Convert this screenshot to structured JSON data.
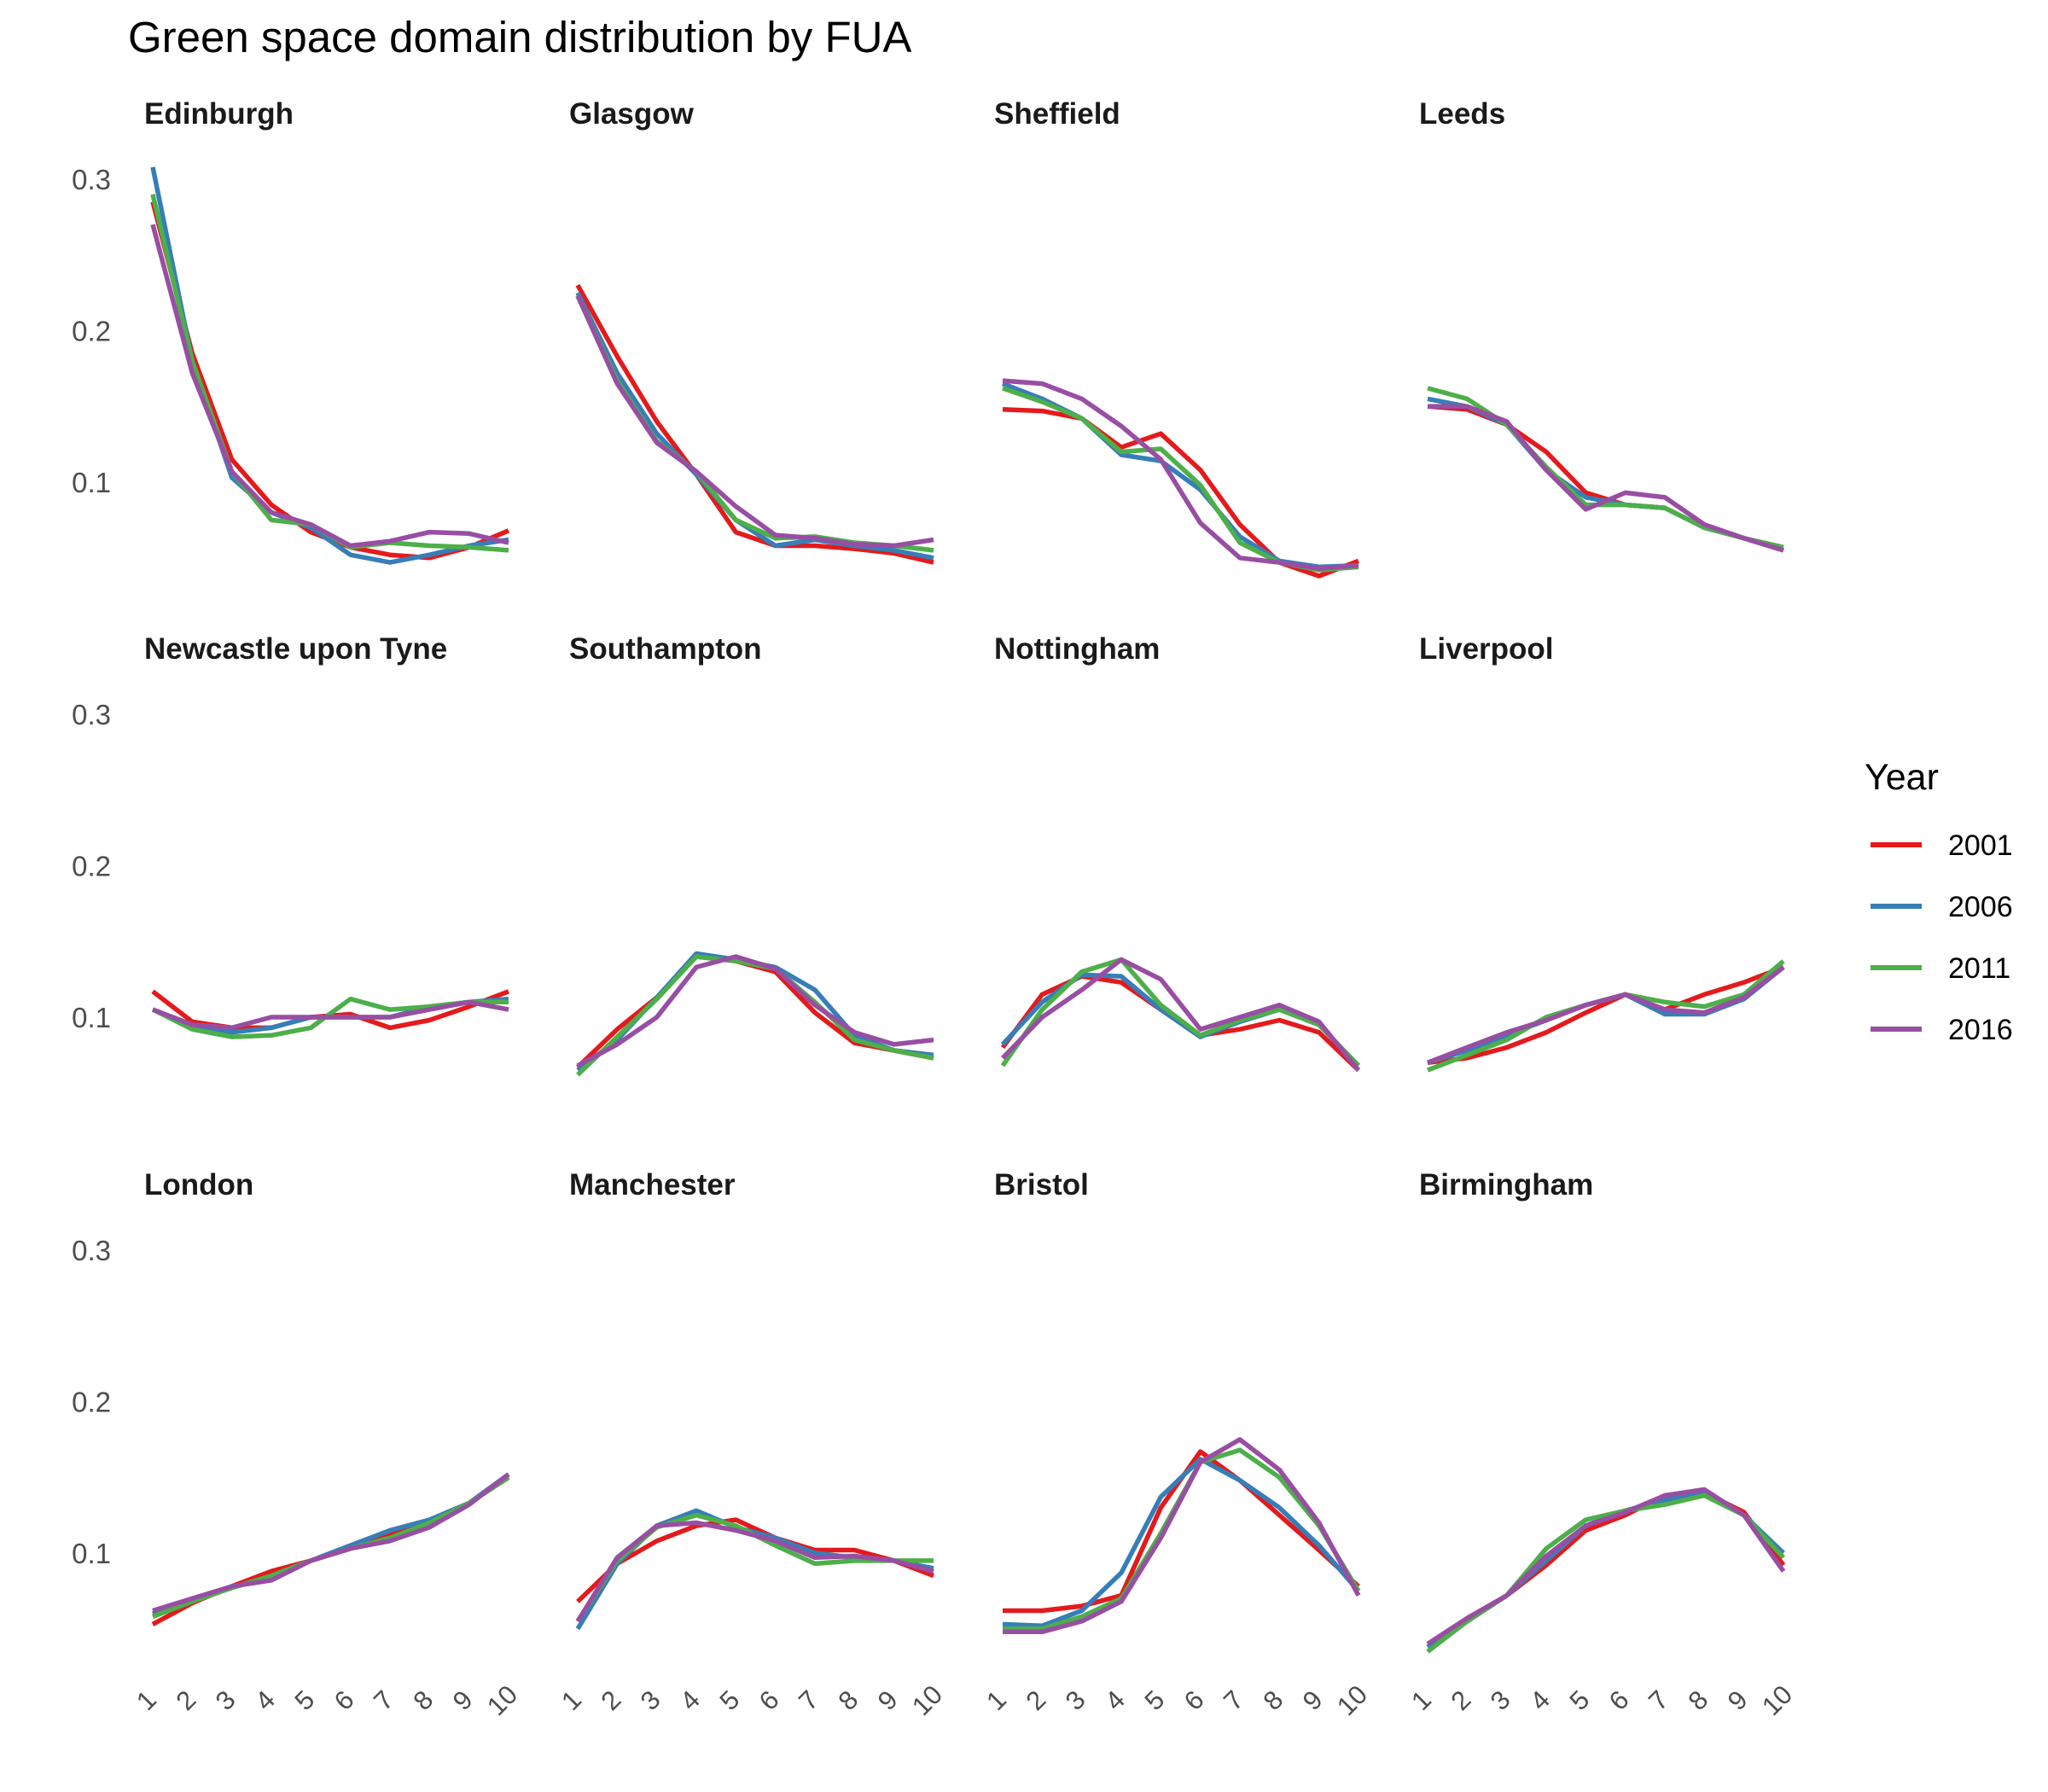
{
  "chart_data": {
    "type": "line",
    "title": "Green space domain distribution by FUA",
    "xlabel": "",
    "ylabel": "",
    "x": [
      1,
      2,
      3,
      4,
      5,
      6,
      7,
      8,
      9,
      10
    ],
    "x_tick_labels": [
      "1",
      "2",
      "3",
      "4",
      "5",
      "6",
      "7",
      "8",
      "9",
      "10"
    ],
    "y_ticks": [
      0.1,
      0.2,
      0.3
    ],
    "y_tick_labels": [
      "0.1",
      "0.2",
      "0.3"
    ],
    "ylim": [
      0.025,
      0.31
    ],
    "grid": false,
    "legend": {
      "title": "Year",
      "position": "right",
      "entries": [
        {
          "name": "2001",
          "color": "#e41a1c"
        },
        {
          "name": "2006",
          "color": "#377eb8"
        },
        {
          "name": "2011",
          "color": "#4daf4a"
        },
        {
          "name": "2016",
          "color": "#984ea3"
        }
      ]
    },
    "panels": [
      {
        "name": "Edinburgh",
        "series": [
          {
            "name": "2001",
            "values": [
              0.285,
              0.185,
              0.115,
              0.085,
              0.067,
              0.057,
              0.052,
              0.05,
              0.057,
              0.068
            ]
          },
          {
            "name": "2006",
            "values": [
              0.308,
              0.18,
              0.103,
              0.08,
              0.07,
              0.052,
              0.047,
              0.052,
              0.058,
              0.062
            ]
          },
          {
            "name": "2011",
            "values": [
              0.29,
              0.18,
              0.107,
              0.075,
              0.072,
              0.057,
              0.06,
              0.058,
              0.057,
              0.055
            ]
          },
          {
            "name": "2016",
            "values": [
              0.27,
              0.172,
              0.107,
              0.08,
              0.072,
              0.058,
              0.061,
              0.067,
              0.066,
              0.06
            ]
          }
        ]
      },
      {
        "name": "Glasgow",
        "series": [
          {
            "name": "2001",
            "values": [
              0.23,
              0.183,
              0.14,
              0.105,
              0.067,
              0.058,
              0.058,
              0.056,
              0.053,
              0.047
            ]
          },
          {
            "name": "2006",
            "values": [
              0.225,
              0.172,
              0.132,
              0.105,
              0.075,
              0.058,
              0.062,
              0.058,
              0.055,
              0.05
            ]
          },
          {
            "name": "2011",
            "values": [
              0.223,
              0.167,
              0.127,
              0.107,
              0.075,
              0.063,
              0.064,
              0.06,
              0.058,
              0.055
            ]
          },
          {
            "name": "2016",
            "values": [
              0.223,
              0.165,
              0.126,
              0.107,
              0.084,
              0.065,
              0.063,
              0.059,
              0.058,
              0.062
            ]
          }
        ]
      },
      {
        "name": "Sheffield",
        "series": [
          {
            "name": "2001",
            "values": [
              0.148,
              0.147,
              0.142,
              0.123,
              0.132,
              0.108,
              0.072,
              0.047,
              0.038,
              0.048
            ]
          },
          {
            "name": "2006",
            "values": [
              0.165,
              0.155,
              0.142,
              0.118,
              0.114,
              0.095,
              0.064,
              0.048,
              0.044,
              0.045
            ]
          },
          {
            "name": "2011",
            "values": [
              0.162,
              0.153,
              0.142,
              0.12,
              0.122,
              0.098,
              0.06,
              0.047,
              0.042,
              0.044
            ]
          },
          {
            "name": "2016",
            "values": [
              0.167,
              0.165,
              0.155,
              0.137,
              0.115,
              0.073,
              0.05,
              0.047,
              0.043,
              0.045
            ]
          }
        ]
      },
      {
        "name": "Leeds",
        "series": [
          {
            "name": "2001",
            "values": [
              0.15,
              0.148,
              0.138,
              0.12,
              0.093,
              0.085,
              0.083,
              0.07,
              0.063,
              0.055
            ]
          },
          {
            "name": "2006",
            "values": [
              0.155,
              0.15,
              0.138,
              0.108,
              0.09,
              0.085,
              0.083,
              0.07,
              0.063,
              0.055
            ]
          },
          {
            "name": "2011",
            "values": [
              0.162,
              0.155,
              0.138,
              0.11,
              0.085,
              0.085,
              0.083,
              0.07,
              0.063,
              0.057
            ]
          },
          {
            "name": "2016",
            "values": [
              0.15,
              0.15,
              0.14,
              0.108,
              0.082,
              0.093,
              0.09,
              0.072,
              0.063,
              0.055
            ]
          }
        ]
      },
      {
        "name": "Newcastle upon Tyne",
        "series": [
          {
            "name": "2001",
            "values": [
              0.117,
              0.097,
              0.093,
              0.093,
              0.1,
              0.102,
              0.093,
              0.098,
              0.107,
              0.117
            ]
          },
          {
            "name": "2006",
            "values": [
              0.105,
              0.095,
              0.09,
              0.093,
              0.1,
              0.1,
              0.1,
              0.107,
              0.11,
              0.112
            ]
          },
          {
            "name": "2011",
            "values": [
              0.105,
              0.092,
              0.087,
              0.088,
              0.093,
              0.112,
              0.105,
              0.107,
              0.11,
              0.11
            ]
          },
          {
            "name": "2016",
            "values": [
              0.105,
              0.095,
              0.093,
              0.1,
              0.1,
              0.1,
              0.1,
              0.105,
              0.11,
              0.105
            ]
          }
        ]
      },
      {
        "name": "Southampton",
        "series": [
          {
            "name": "2001",
            "values": [
              0.067,
              0.092,
              0.113,
              0.14,
              0.137,
              0.13,
              0.103,
              0.083,
              0.078,
              0.073
            ]
          },
          {
            "name": "2006",
            "values": [
              0.065,
              0.085,
              0.113,
              0.142,
              0.138,
              0.133,
              0.118,
              0.088,
              0.078,
              0.075
            ]
          },
          {
            "name": "2011",
            "values": [
              0.062,
              0.087,
              0.112,
              0.14,
              0.137,
              0.132,
              0.11,
              0.085,
              0.078,
              0.073
            ]
          },
          {
            "name": "2016",
            "values": [
              0.068,
              0.082,
              0.1,
              0.133,
              0.14,
              0.132,
              0.108,
              0.09,
              0.082,
              0.085
            ]
          }
        ]
      },
      {
        "name": "Nottingham",
        "series": [
          {
            "name": "2001",
            "values": [
              0.08,
              0.115,
              0.127,
              0.123,
              0.105,
              0.088,
              0.092,
              0.098,
              0.09,
              0.065
            ]
          },
          {
            "name": "2006",
            "values": [
              0.082,
              0.11,
              0.128,
              0.127,
              0.105,
              0.087,
              0.097,
              0.105,
              0.095,
              0.068
            ]
          },
          {
            "name": "2011",
            "values": [
              0.068,
              0.105,
              0.13,
              0.138,
              0.108,
              0.088,
              0.098,
              0.105,
              0.095,
              0.068
            ]
          },
          {
            "name": "2016",
            "values": [
              0.073,
              0.1,
              0.118,
              0.138,
              0.125,
              0.092,
              0.1,
              0.108,
              0.097,
              0.065
            ]
          }
        ]
      },
      {
        "name": "Liverpool",
        "series": [
          {
            "name": "2001",
            "values": [
              0.07,
              0.073,
              0.08,
              0.09,
              0.103,
              0.115,
              0.105,
              0.115,
              0.123,
              0.133
            ]
          },
          {
            "name": "2006",
            "values": [
              0.07,
              0.078,
              0.088,
              0.098,
              0.108,
              0.115,
              0.102,
              0.102,
              0.112,
              0.133
            ]
          },
          {
            "name": "2011",
            "values": [
              0.065,
              0.075,
              0.085,
              0.1,
              0.108,
              0.115,
              0.11,
              0.107,
              0.115,
              0.137
            ]
          },
          {
            "name": "2016",
            "values": [
              0.07,
              0.08,
              0.09,
              0.098,
              0.108,
              0.115,
              0.105,
              0.103,
              0.113,
              0.133
            ]
          }
        ]
      },
      {
        "name": "London",
        "series": [
          {
            "name": "2001",
            "values": [
              0.053,
              0.067,
              0.078,
              0.088,
              0.095,
              0.103,
              0.113,
              0.12,
              0.133,
              0.15
            ]
          },
          {
            "name": "2006",
            "values": [
              0.06,
              0.07,
              0.077,
              0.085,
              0.095,
              0.105,
              0.115,
              0.122,
              0.133,
              0.152
            ]
          },
          {
            "name": "2011",
            "values": [
              0.058,
              0.068,
              0.077,
              0.085,
              0.095,
              0.103,
              0.11,
              0.12,
              0.133,
              0.15
            ]
          },
          {
            "name": "2016",
            "values": [
              0.062,
              0.07,
              0.078,
              0.082,
              0.095,
              0.103,
              0.108,
              0.117,
              0.132,
              0.152
            ]
          }
        ]
      },
      {
        "name": "Manchester",
        "series": [
          {
            "name": "2001",
            "values": [
              0.068,
              0.093,
              0.108,
              0.118,
              0.122,
              0.11,
              0.102,
              0.102,
              0.095,
              0.085
            ]
          },
          {
            "name": "2006",
            "values": [
              0.05,
              0.093,
              0.118,
              0.128,
              0.117,
              0.11,
              0.1,
              0.097,
              0.095,
              0.09
            ]
          },
          {
            "name": "2011",
            "values": [
              0.055,
              0.095,
              0.117,
              0.125,
              0.118,
              0.105,
              0.093,
              0.095,
              0.095,
              0.095
            ]
          },
          {
            "name": "2016",
            "values": [
              0.055,
              0.097,
              0.118,
              0.12,
              0.115,
              0.108,
              0.097,
              0.098,
              0.095,
              0.088
            ]
          }
        ]
      },
      {
        "name": "Bristol",
        "series": [
          {
            "name": "2001",
            "values": [
              0.062,
              0.062,
              0.065,
              0.072,
              0.13,
              0.167,
              0.148,
              0.125,
              0.102,
              0.078
            ]
          },
          {
            "name": "2006",
            "values": [
              0.053,
              0.052,
              0.062,
              0.087,
              0.137,
              0.162,
              0.148,
              0.13,
              0.105,
              0.075
            ]
          },
          {
            "name": "2011",
            "values": [
              0.05,
              0.05,
              0.058,
              0.07,
              0.113,
              0.16,
              0.168,
              0.15,
              0.118,
              0.075
            ]
          },
          {
            "name": "2016",
            "values": [
              0.048,
              0.048,
              0.055,
              0.068,
              0.11,
              0.16,
              0.175,
              0.155,
              0.12,
              0.072
            ]
          }
        ]
      },
      {
        "name": "Birmingham",
        "series": [
          {
            "name": "2001",
            "values": [
              0.038,
              0.055,
              0.072,
              0.092,
              0.115,
              0.125,
              0.138,
              0.14,
              0.127,
              0.092
            ]
          },
          {
            "name": "2006",
            "values": [
              0.038,
              0.055,
              0.072,
              0.095,
              0.118,
              0.128,
              0.135,
              0.14,
              0.125,
              0.1
            ]
          },
          {
            "name": "2011",
            "values": [
              0.035,
              0.055,
              0.072,
              0.103,
              0.122,
              0.128,
              0.132,
              0.138,
              0.125,
              0.097
            ]
          },
          {
            "name": "2016",
            "values": [
              0.04,
              0.057,
              0.072,
              0.098,
              0.118,
              0.127,
              0.138,
              0.142,
              0.125,
              0.088
            ]
          }
        ]
      }
    ]
  }
}
